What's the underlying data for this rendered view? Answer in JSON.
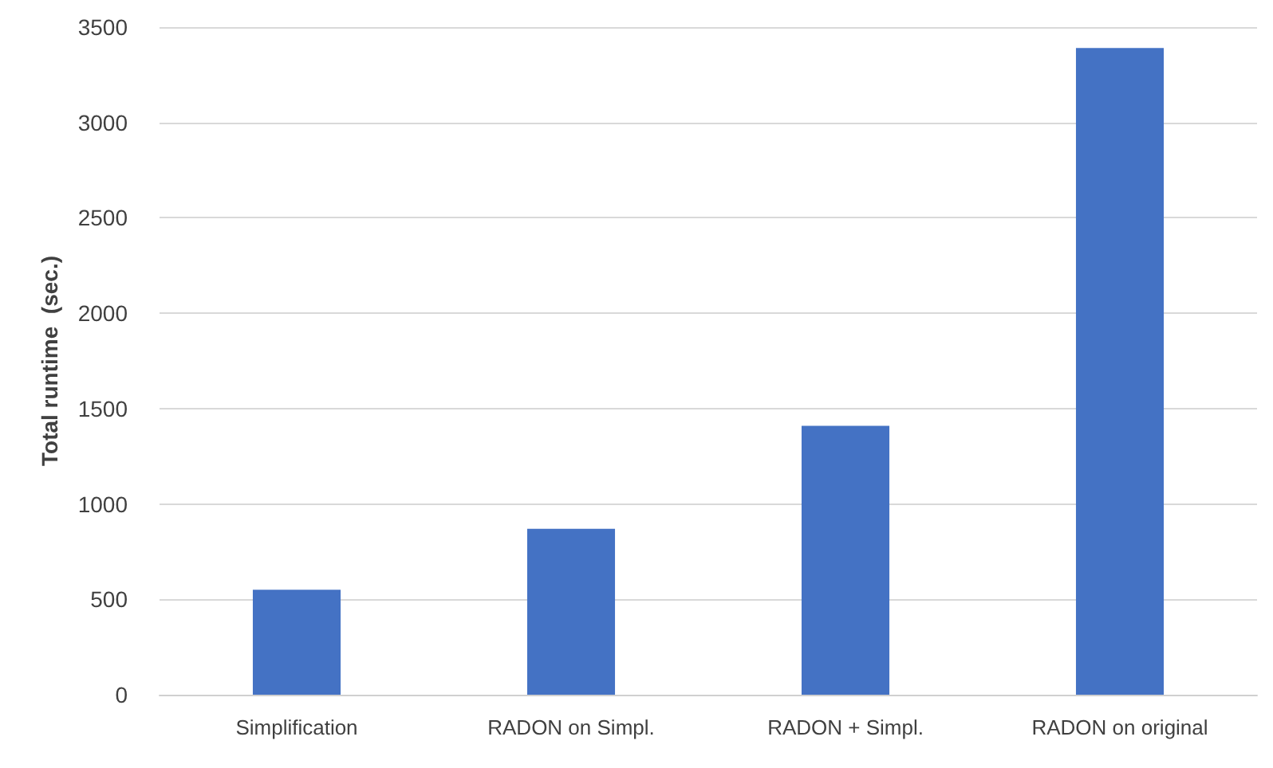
{
  "chart_data": {
    "type": "bar",
    "ylabel": "Total runtime  (sec.)",
    "categories": [
      "Simplification",
      "RADON on Simpl.",
      "RADON + Simpl.",
      "RADON on original"
    ],
    "values": [
      550,
      870,
      1410,
      3390
    ],
    "color": "#4472c4",
    "ylim": [
      0,
      3500
    ],
    "yticks": [
      0,
      500,
      1000,
      1500,
      2000,
      2500,
      3000,
      3500
    ],
    "grid": "y"
  }
}
